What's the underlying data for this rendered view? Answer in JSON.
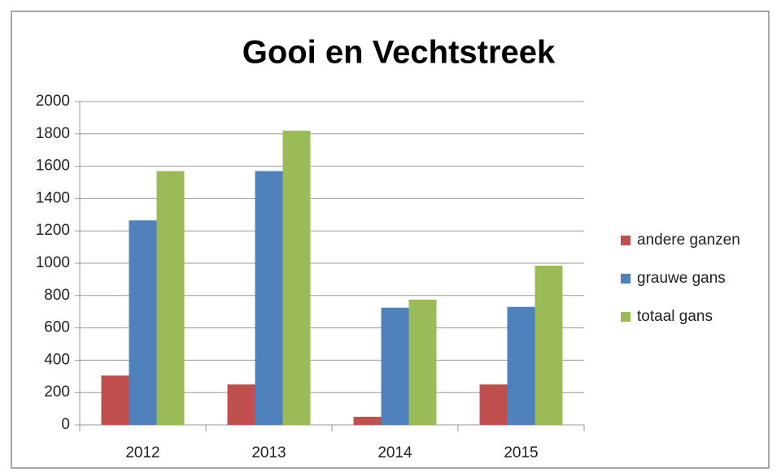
{
  "chart_data": {
    "type": "bar",
    "title": "Gooi en Vechtstreek",
    "categories": [
      "2012",
      "2013",
      "2014",
      "2015"
    ],
    "series": [
      {
        "name": "andere ganzen",
        "color": "#c0504d",
        "values": [
          305,
          250,
          50,
          250
        ]
      },
      {
        "name": "grauwe gans",
        "color": "#4f81bd",
        "values": [
          1265,
          1570,
          725,
          730
        ]
      },
      {
        "name": "totaal gans",
        "color": "#9bbb59",
        "values": [
          1570,
          1820,
          775,
          985
        ]
      }
    ],
    "ylim": [
      0,
      2000
    ],
    "yticks": [
      0,
      200,
      400,
      600,
      800,
      1000,
      1200,
      1400,
      1600,
      1800,
      2000
    ],
    "grid": true,
    "legend": "right"
  }
}
